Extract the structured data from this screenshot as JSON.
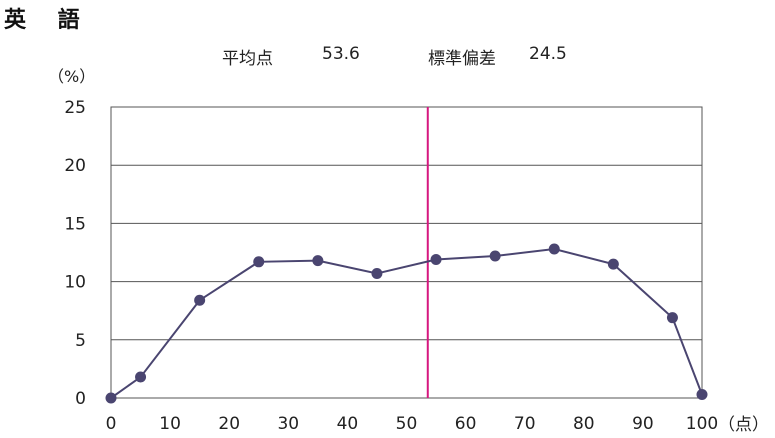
{
  "subject_title": "英 語",
  "stats": {
    "mean_label": "平均点",
    "mean_value": "53.6",
    "sd_label": "標準偏差",
    "sd_value": "24.5"
  },
  "colors": {
    "series": "#4a4570",
    "mean_line": "#d6177f",
    "grid": "#555555"
  },
  "chart_data": {
    "type": "line",
    "y_unit_label": "（%）",
    "x_unit_label": "（点）",
    "xlim": [
      0,
      100
    ],
    "ylim": [
      0,
      25
    ],
    "x_ticks": [
      0,
      10,
      20,
      30,
      40,
      50,
      60,
      70,
      80,
      90,
      100
    ],
    "y_ticks": [
      0,
      5,
      10,
      15,
      20,
      25
    ],
    "grid": "horizontal",
    "series": [
      {
        "x": [
          0,
          5,
          15,
          25,
          35,
          45,
          55,
          65,
          75,
          85,
          95,
          100
        ],
        "y": [
          0,
          1.8,
          8.4,
          11.7,
          11.8,
          10.7,
          11.9,
          12.2,
          12.8,
          11.5,
          6.9,
          0.3
        ]
      }
    ],
    "mean_line_x": 53.6
  }
}
